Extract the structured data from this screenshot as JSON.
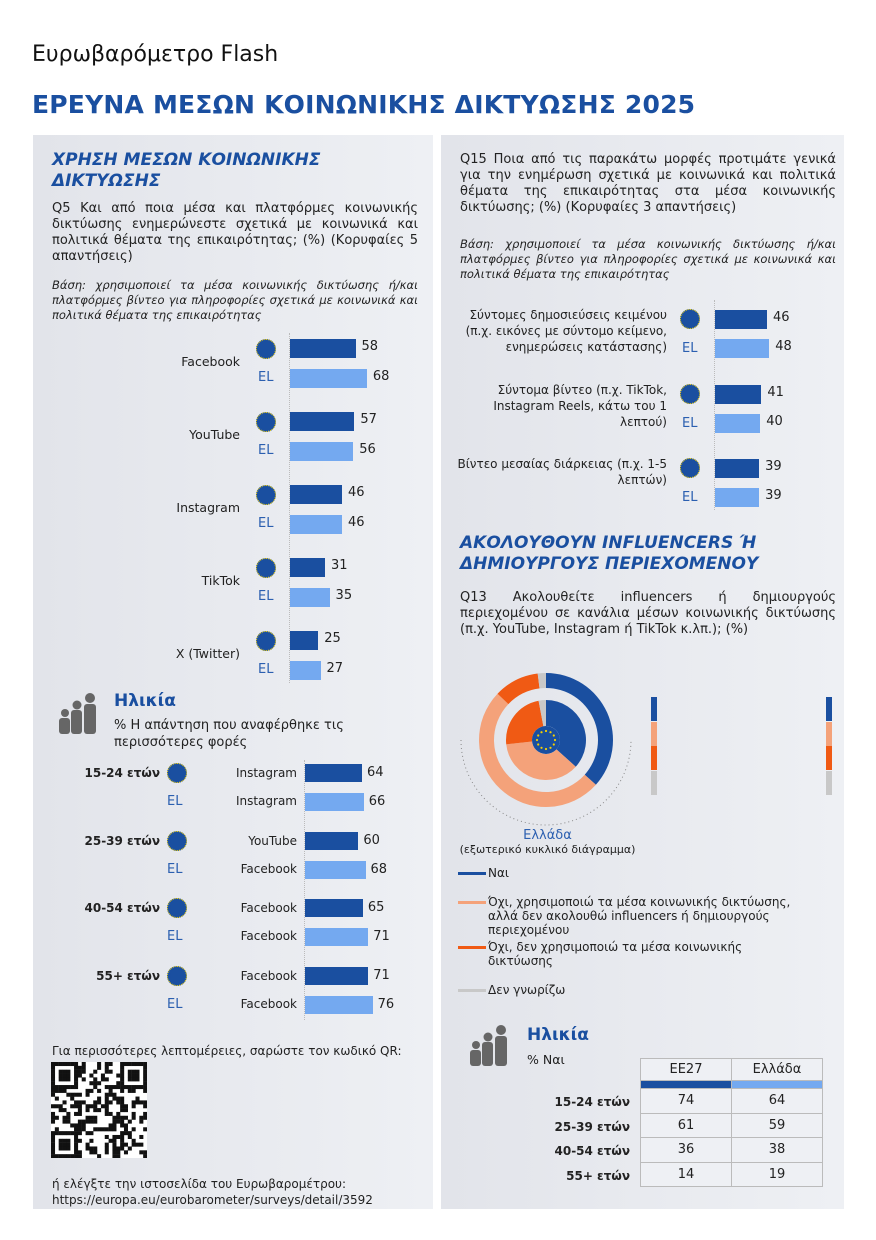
{
  "header": {
    "subtitle": "Ευρωβαρόμετρο Flash",
    "title": "ΕΡΕΥΝΑ ΜΕΣΩΝ ΚΟΙΝΩΝΙΚΗΣ ΔΙΚΤΥΩΣΗΣ 2025"
  },
  "colors": {
    "eu27": "#1a4fa0",
    "el": "#74a9f0",
    "yes": "#1a4fa0",
    "no_uses": "#f4a27a",
    "no_not_uses": "#f05a14",
    "dont_know": "#c8c8c8"
  },
  "eu_label": "EL",
  "q5": {
    "heading": "ΧΡΗΣΗ ΜΕΣΩΝ ΚΟΙΝΩΝΙΚΗΣ ΔΙΚΤΥΩΣΗΣ",
    "question": "Q5 Και από ποια μέσα και πλατφόρμες κοινωνικής δικτύωσης ενημερώνεστε σχετικά με κοινωνικά και πολιτικά θέματα της επικαιρότητας; (%) (Κορυφαίες 5 απαντήσεις)",
    "base": "Βάση: χρησιμοποιεί τα μέσα κοινωνικής δικτύωσης ή/και πλατφόρμες βίντεο για πληροφορίες σχετικά με κοινωνικά και πολιτικά θέματα της επικαιρότητας",
    "items": [
      {
        "label": "Facebook",
        "eu": 58,
        "el": 68
      },
      {
        "label": "YouTube",
        "eu": 57,
        "el": 56
      },
      {
        "label": "Instagram",
        "eu": 46,
        "el": 46
      },
      {
        "label": "TikTok",
        "eu": 31,
        "el": 35
      },
      {
        "label": "X (Twitter)",
        "eu": 25,
        "el": 27
      }
    ]
  },
  "age_top": {
    "heading": "Ηλικία",
    "subtitle": "% Η απάντηση που αναφέρθηκε τις περισσότερες φορές",
    "groups": [
      {
        "age": "15-24 ετών",
        "eu_platform": "Instagram",
        "eu": 64,
        "el_platform": "Instagram",
        "el": 66
      },
      {
        "age": "25-39 ετών",
        "eu_platform": "YouTube",
        "eu": 60,
        "el_platform": "Facebook",
        "el": 68
      },
      {
        "age": "40-54 ετών",
        "eu_platform": "Facebook",
        "eu": 65,
        "el_platform": "Facebook",
        "el": 71
      },
      {
        "age": "55+ ετών",
        "eu_platform": "Facebook",
        "eu": 71,
        "el_platform": "Facebook",
        "el": 76
      }
    ]
  },
  "qr": {
    "text": "Για περισσότερες λεπτομέρειες, σαρώστε τον κωδικό QR:",
    "site_text": "ή ελέγξτε την ιστοσελίδα του Ευρωβαρομέτρου:",
    "url": "https://europa.eu/eurobarometer/surveys/detail/3592"
  },
  "q15": {
    "question": "Q15 Ποια από τις παρακάτω μορφές προτιμάτε γενικά για την ενημέρωση σχετικά με κοινωνικά και πολιτικά θέματα της επικαιρότητας στα μέσα κοινωνικής δικτύωσης; (%) (Κορυφαίες 3 απαντήσεις)",
    "base": "Βάση: χρησιμοποιεί τα μέσα κοινωνικής δικτύωσης ή/και πλατφόρμες βίντεο για πληροφορίες σχετικά με κοινωνικά και πολιτικά θέματα της επικαιρότητας",
    "items": [
      {
        "label": "Σύντομες δημοσιεύσεις κειμένου (π.χ. εικόνες με σύντομο κείμενο, ενημερώσεις κατάστασης)",
        "eu": 46,
        "el": 48
      },
      {
        "label": "Σύντομα βίντεο (π.χ. TikTok, Instagram Reels, κάτω του 1 λεπτού)",
        "eu": 41,
        "el": 40
      },
      {
        "label": "Βίντεο μεσαίας διάρκειας (π.χ. 1-5 λεπτών)",
        "eu": 39,
        "el": 39
      }
    ]
  },
  "q13": {
    "heading": "ΑΚΟΛΟΥΘΟΥΝ INFLUENCERS Ή ΔΗΜΙΟΥΡΓΟΥΣ ΠΕΡΙΕΧΟΜΕΝΟΥ",
    "question": "Q13 Ακολουθείτε influencers ή δημιουργούς περιεχομένου σε κανάλια μέσων κοινωνικής δικτύωσης (π.χ. YouTube, Instagram ή TikTok κ.λπ.); (%)",
    "chart_caption": "Ελλάδα",
    "chart_caption_sub": "(εξωτερικό κυκλικό διάγραμμα)",
    "table_headers": [
      "ΕΕ27",
      "Ελλάδα"
    ],
    "rows": [
      {
        "label": "Ναι",
        "eu": 37,
        "el": 37,
        "color": "#1a4fa0"
      },
      {
        "label": "Όχι, χρησιμοποιώ τα μέσα κοινωνικής δικτύωσης, αλλά δεν ακολουθώ influencers ή δημιουργούς περιεχομένου",
        "eu": 37,
        "el": 51,
        "color": "#f4a27a"
      },
      {
        "label": "Όχι, δεν χρησιμοποιώ τα μέσα κοινωνικής δικτύωσης",
        "eu": 24,
        "el": 11,
        "color": "#f05a14"
      },
      {
        "label": "Δεν γνωρίζω",
        "eu": 3,
        "el": 2,
        "color": "#c8c8c8"
      }
    ]
  },
  "age_bottom": {
    "heading": "Ηλικία",
    "subtitle": "% Ναι",
    "headers": [
      "ΕΕ27",
      "Ελλάδα"
    ],
    "rows": [
      {
        "age": "15-24 ετών",
        "eu": 74,
        "el": 64
      },
      {
        "age": "25-39 ετών",
        "eu": 61,
        "el": 59
      },
      {
        "age": "40-54 ετών",
        "eu": 36,
        "el": 38
      },
      {
        "age": "55+ ετών",
        "eu": 14,
        "el": 19
      }
    ]
  }
}
